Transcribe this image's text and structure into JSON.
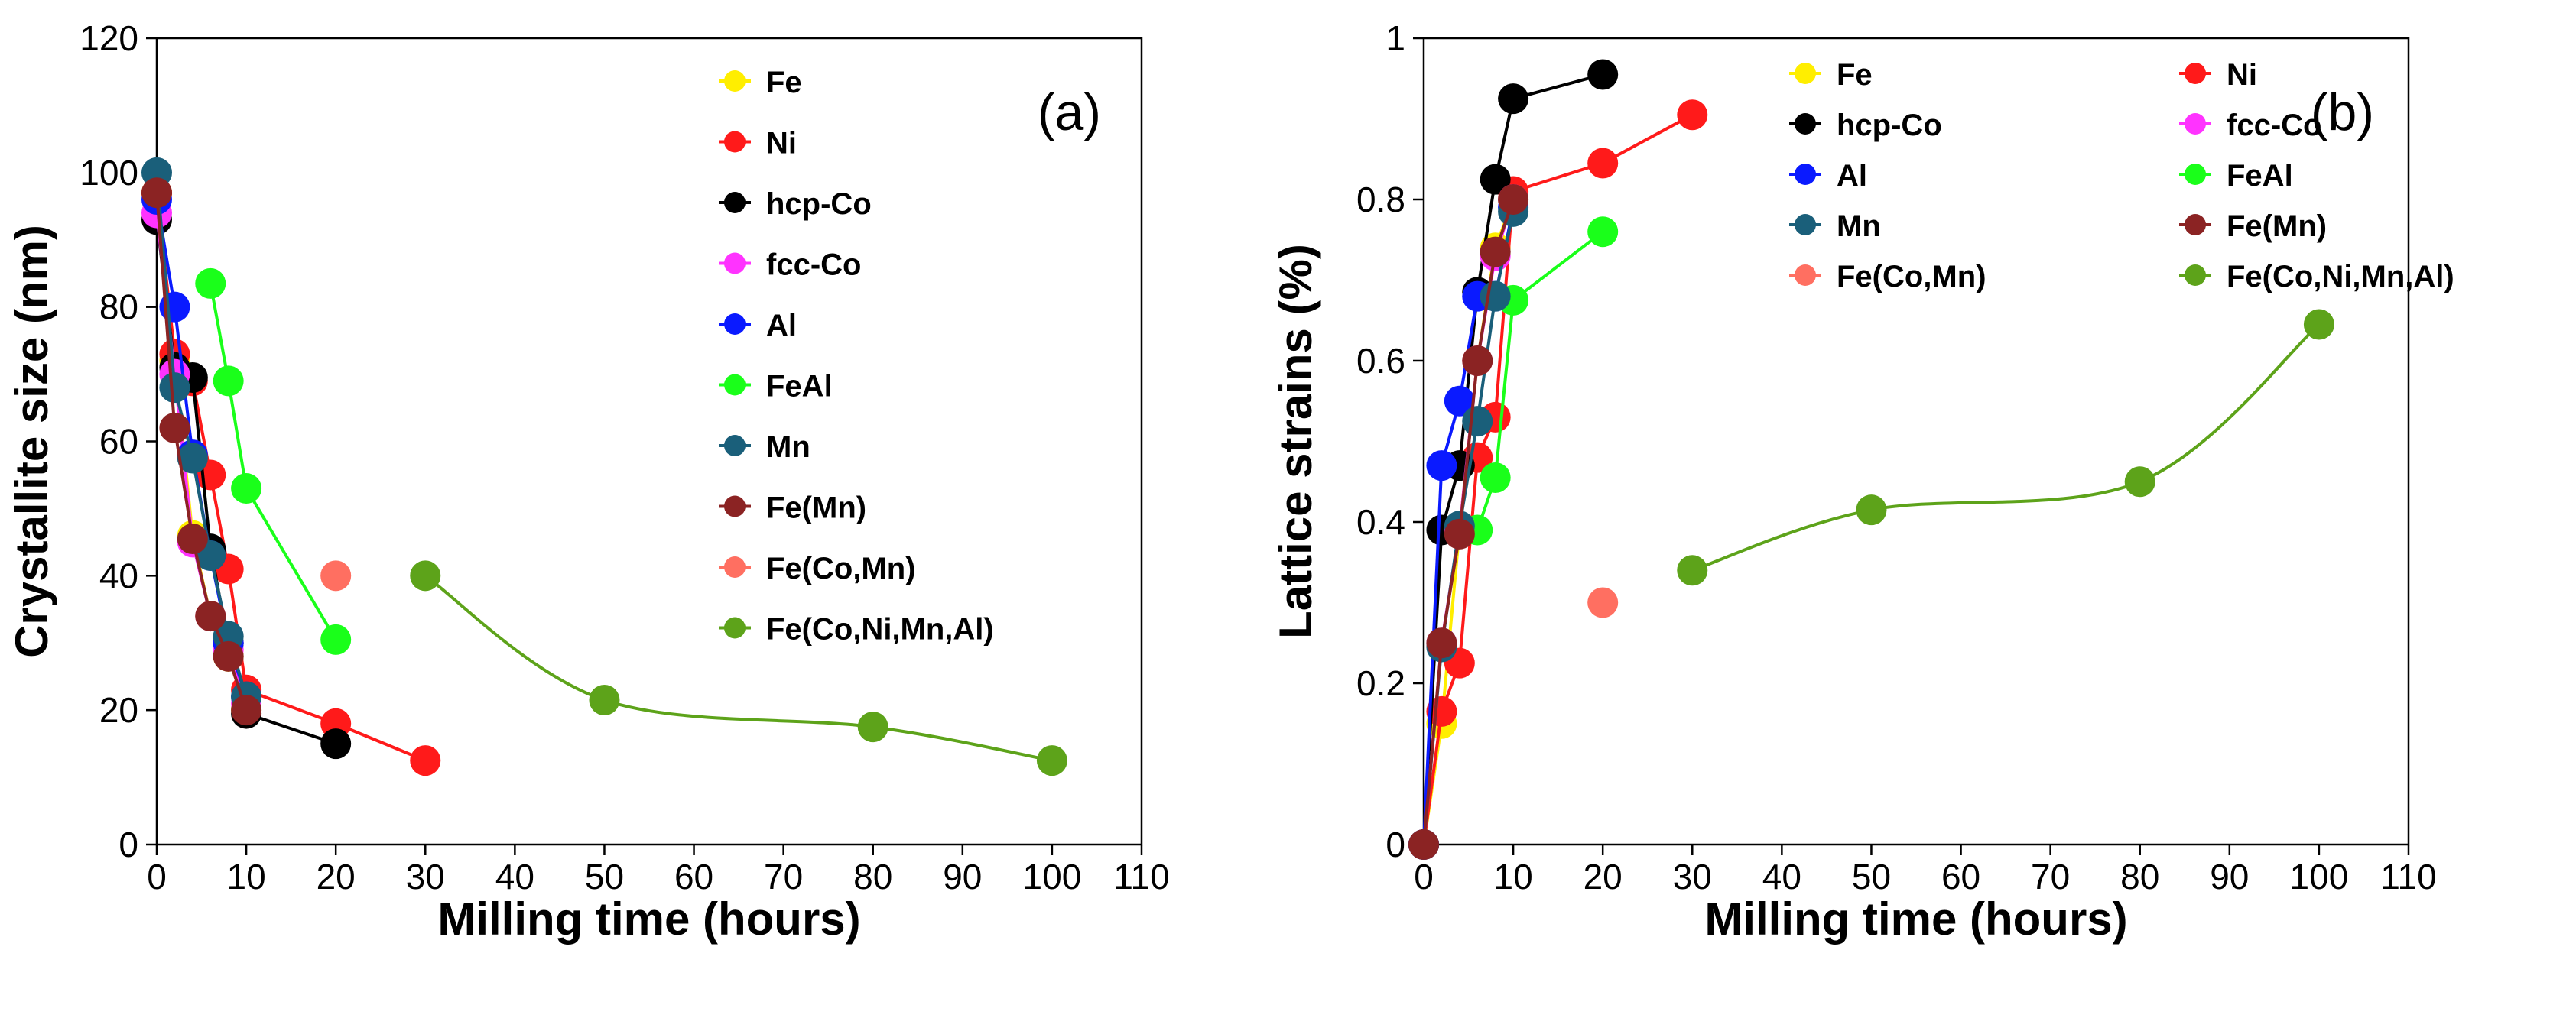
{
  "chart_data": [
    {
      "type": "line",
      "panel_label": "(a)",
      "xlabel": "Milling time (hours)",
      "ylabel": "Crystallite size (nm)",
      "xlim": [
        0,
        110
      ],
      "ylim": [
        0,
        120
      ],
      "xticks": [
        0,
        10,
        20,
        30,
        40,
        50,
        60,
        70,
        80,
        90,
        100,
        110
      ],
      "yticks": [
        0,
        20,
        40,
        60,
        80,
        100,
        120
      ],
      "grid": false,
      "legend_position": "right, single column",
      "series": [
        {
          "name": "Fe",
          "color": "#ffee00",
          "smooth": false,
          "points": [
            [
              0,
              97
            ],
            [
              2,
              72
            ],
            [
              4,
              46
            ],
            [
              6,
              34
            ],
            [
              8,
              28
            ],
            [
              10,
              20
            ]
          ]
        },
        {
          "name": "Ni",
          "color": "#ff1a1a",
          "smooth": false,
          "points": [
            [
              0,
              97
            ],
            [
              2,
              73
            ],
            [
              4,
              69
            ],
            [
              6,
              55
            ],
            [
              8,
              41
            ],
            [
              10,
              23
            ],
            [
              20,
              18
            ],
            [
              30,
              12.5
            ]
          ]
        },
        {
          "name": "hcp-Co",
          "color": "#000000",
          "smooth": false,
          "points": [
            [
              0,
              93
            ],
            [
              2,
              71
            ],
            [
              4,
              69.5
            ],
            [
              6,
              44
            ],
            [
              8,
              30
            ],
            [
              10,
              19.5
            ],
            [
              20,
              15
            ]
          ]
        },
        {
          "name": "fcc-Co",
          "color": "#ff33ff",
          "smooth": false,
          "points": [
            [
              0,
              94
            ],
            [
              2,
              70
            ],
            [
              4,
              45
            ],
            [
              6,
              34
            ],
            [
              8,
              29
            ],
            [
              10,
              21
            ]
          ]
        },
        {
          "name": "Al",
          "color": "#0a1aff",
          "smooth": false,
          "points": [
            [
              0,
              96
            ],
            [
              2,
              80
            ],
            [
              4,
              58
            ],
            [
              6,
              43
            ],
            [
              8,
              30
            ],
            [
              10,
              22
            ]
          ]
        },
        {
          "name": "FeAl",
          "color": "#1aff1a",
          "smooth": false,
          "points": [
            [
              6,
              83.5
            ],
            [
              8,
              69
            ],
            [
              10,
              53
            ],
            [
              20,
              30.5
            ]
          ]
        },
        {
          "name": "Mn",
          "color": "#1a5f7a",
          "smooth": false,
          "points": [
            [
              0,
              100
            ],
            [
              2,
              68
            ],
            [
              4,
              57.5
            ],
            [
              6,
              43
            ],
            [
              8,
              31
            ],
            [
              10,
              22
            ]
          ]
        },
        {
          "name": "Fe(Mn)",
          "color": "#8b2323",
          "smooth": false,
          "points": [
            [
              0,
              97
            ],
            [
              2,
              62
            ],
            [
              4,
              45.5
            ],
            [
              6,
              34
            ],
            [
              8,
              28
            ],
            [
              10,
              20
            ]
          ]
        },
        {
          "name": "Fe(Co,Mn)",
          "color": "#ff6f61",
          "smooth": false,
          "points": [
            [
              20,
              40
            ]
          ]
        },
        {
          "name": "Fe(Co,Ni,Mn,Al)",
          "color": "#5da31a",
          "smooth": true,
          "points": [
            [
              30,
              40
            ],
            [
              50,
              21.5
            ],
            [
              80,
              17.5
            ],
            [
              100,
              12.5
            ]
          ]
        }
      ]
    },
    {
      "type": "line",
      "panel_label": "(b)",
      "xlabel": "Milling time (hours)",
      "ylabel": "Lattice strains (%)",
      "xlim": [
        0,
        110
      ],
      "ylim": [
        0,
        1
      ],
      "xticks": [
        0,
        10,
        20,
        30,
        40,
        50,
        60,
        70,
        80,
        90,
        100,
        110
      ],
      "yticks": [
        "0",
        "0.2",
        "0.4",
        "0.6",
        "0.8",
        "1"
      ],
      "grid": false,
      "legend_position": "top, two columns",
      "series": [
        {
          "name": "Fe",
          "color": "#ffee00",
          "smooth": false,
          "points": [
            [
              0,
              0
            ],
            [
              2,
              0.15
            ],
            [
              4,
              0.39
            ],
            [
              6,
              0.6
            ],
            [
              8,
              0.74
            ],
            [
              10,
              0.8
            ]
          ]
        },
        {
          "name": "Ni",
          "color": "#ff1a1a",
          "smooth": false,
          "points": [
            [
              0,
              0
            ],
            [
              2,
              0.165
            ],
            [
              4,
              0.225
            ],
            [
              6,
              0.48
            ],
            [
              8,
              0.53
            ],
            [
              10,
              0.81
            ],
            [
              20,
              0.845
            ],
            [
              30,
              0.905
            ]
          ]
        },
        {
          "name": "hcp-Co",
          "color": "#000000",
          "smooth": false,
          "points": [
            [
              0,
              0
            ],
            [
              2,
              0.39
            ],
            [
              4,
              0.47
            ],
            [
              6,
              0.685
            ],
            [
              8,
              0.825
            ],
            [
              10,
              0.925
            ],
            [
              20,
              0.955
            ]
          ]
        },
        {
          "name": "fcc-Co",
          "color": "#ff33ff",
          "smooth": false,
          "points": [
            [
              0,
              0
            ],
            [
              2,
              0.25
            ],
            [
              4,
              0.39
            ],
            [
              6,
              0.6
            ],
            [
              8,
              0.73
            ],
            [
              10,
              0.8
            ]
          ]
        },
        {
          "name": "Al",
          "color": "#0a1aff",
          "smooth": false,
          "points": [
            [
              0,
              0
            ],
            [
              2,
              0.47
            ],
            [
              4,
              0.55
            ],
            [
              6,
              0.68
            ],
            [
              8,
              0.68
            ],
            [
              10,
              0.79
            ]
          ]
        },
        {
          "name": "FeAl",
          "color": "#1aff1a",
          "smooth": false,
          "points": [
            [
              6,
              0.39
            ],
            [
              8,
              0.455
            ],
            [
              10,
              0.675
            ],
            [
              20,
              0.76
            ]
          ]
        },
        {
          "name": "Mn",
          "color": "#1a5f7a",
          "smooth": false,
          "points": [
            [
              0,
              0
            ],
            [
              2,
              0.245
            ],
            [
              4,
              0.395
            ],
            [
              6,
              0.525
            ],
            [
              8,
              0.68
            ],
            [
              10,
              0.785
            ]
          ]
        },
        {
          "name": "Fe(Mn)",
          "color": "#8b2323",
          "smooth": false,
          "points": [
            [
              0,
              0
            ],
            [
              2,
              0.25
            ],
            [
              4,
              0.385
            ],
            [
              6,
              0.6
            ],
            [
              8,
              0.735
            ],
            [
              10,
              0.8
            ]
          ]
        },
        {
          "name": "Fe(Co,Mn)",
          "color": "#ff6f61",
          "smooth": false,
          "points": [
            [
              20,
              0.3
            ]
          ]
        },
        {
          "name": "Fe(Co,Ni,Mn,Al)",
          "color": "#5da31a",
          "smooth": true,
          "points": [
            [
              30,
              0.34
            ],
            [
              50,
              0.415
            ],
            [
              80,
              0.45
            ],
            [
              100,
              0.645
            ]
          ]
        }
      ]
    }
  ]
}
